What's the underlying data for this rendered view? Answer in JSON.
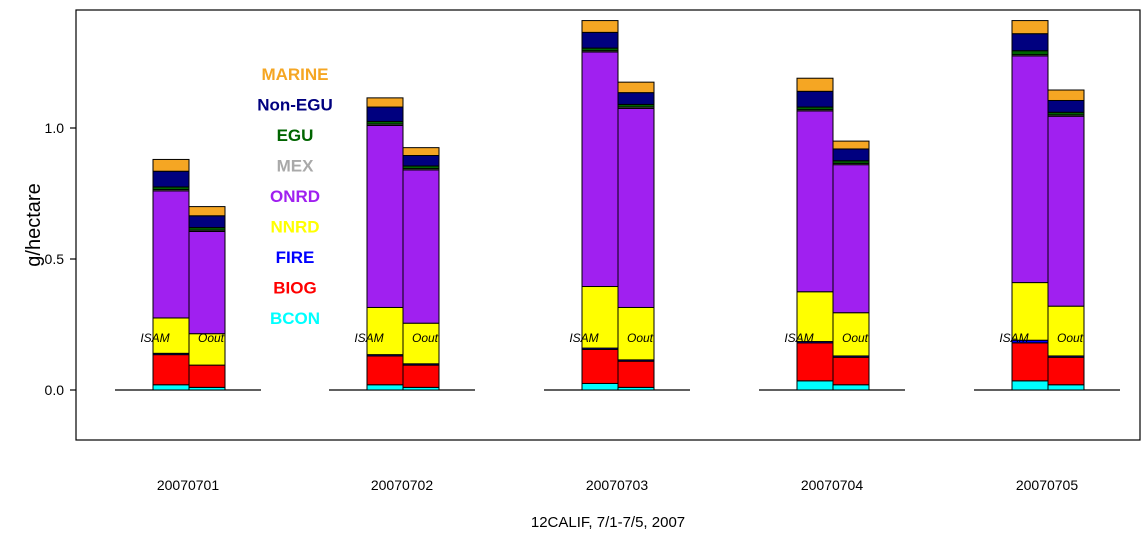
{
  "chart_data": {
    "type": "bar",
    "stacked": true,
    "xlabel": "12CALIF, 7/1-7/5, 2007",
    "ylabel": "g/hectare",
    "ylim": [
      -0.19,
      1.45
    ],
    "yticks": [
      "0.0",
      "0.5",
      "1.0"
    ],
    "ytick_values": [
      0.0,
      0.5,
      1.0
    ],
    "grid": false,
    "legend_position": "left, inside plot",
    "categories": [
      "20070701",
      "20070702",
      "20070703",
      "20070704",
      "20070705"
    ],
    "bar_labels": [
      "ISAM",
      "Oout"
    ],
    "legend": [
      {
        "name": "MARINE",
        "color": "#f5a623"
      },
      {
        "name": "Non-EGU",
        "color": "#00007f"
      },
      {
        "name": "EGU",
        "color": "#006400"
      },
      {
        "name": "MEX",
        "color": "#a9a9a9"
      },
      {
        "name": "ONRD",
        "color": "#a020f0"
      },
      {
        "name": "NNRD",
        "color": "#ffff00"
      },
      {
        "name": "FIRE",
        "color": "#0000ff"
      },
      {
        "name": "BIOG",
        "color": "#ff0000"
      },
      {
        "name": "BCON",
        "color": "#00ffff"
      }
    ],
    "stack_order": [
      "BCON",
      "BIOG",
      "FIRE",
      "NNRD",
      "ONRD",
      "MEX",
      "EGU",
      "Non-EGU",
      "MARINE"
    ],
    "bars": [
      {
        "category": "20070701",
        "label": "ISAM",
        "values": {
          "BCON": 0.02,
          "BIOG": 0.115,
          "FIRE": 0.005,
          "NNRD": 0.135,
          "ONRD": 0.485,
          "MEX": 0.005,
          "EGU": 0.01,
          "Non-EGU": 0.06,
          "MARINE": 0.045
        }
      },
      {
        "category": "20070701",
        "label": "Oout",
        "values": {
          "BCON": 0.01,
          "BIOG": 0.085,
          "FIRE": 0.0,
          "NNRD": 0.12,
          "ONRD": 0.39,
          "MEX": 0.005,
          "EGU": 0.01,
          "Non-EGU": 0.045,
          "MARINE": 0.035
        }
      },
      {
        "category": "20070702",
        "label": "ISAM",
        "values": {
          "BCON": 0.02,
          "BIOG": 0.11,
          "FIRE": 0.005,
          "NNRD": 0.18,
          "ONRD": 0.695,
          "MEX": 0.005,
          "EGU": 0.01,
          "Non-EGU": 0.055,
          "MARINE": 0.035
        }
      },
      {
        "category": "20070702",
        "label": "Oout",
        "values": {
          "BCON": 0.01,
          "BIOG": 0.085,
          "FIRE": 0.005,
          "NNRD": 0.155,
          "ONRD": 0.585,
          "MEX": 0.005,
          "EGU": 0.01,
          "Non-EGU": 0.04,
          "MARINE": 0.03
        }
      },
      {
        "category": "20070703",
        "label": "ISAM",
        "values": {
          "BCON": 0.025,
          "BIOG": 0.13,
          "FIRE": 0.005,
          "NNRD": 0.235,
          "ONRD": 0.895,
          "MEX": 0.005,
          "EGU": 0.01,
          "Non-EGU": 0.06,
          "MARINE": 0.045
        }
      },
      {
        "category": "20070703",
        "label": "Oout",
        "values": {
          "BCON": 0.01,
          "BIOG": 0.1,
          "FIRE": 0.005,
          "NNRD": 0.2,
          "ONRD": 0.76,
          "MEX": 0.005,
          "EGU": 0.01,
          "Non-EGU": 0.045,
          "MARINE": 0.04
        }
      },
      {
        "category": "20070704",
        "label": "ISAM",
        "values": {
          "BCON": 0.035,
          "BIOG": 0.145,
          "FIRE": 0.005,
          "NNRD": 0.19,
          "ONRD": 0.69,
          "MEX": 0.005,
          "EGU": 0.01,
          "Non-EGU": 0.06,
          "MARINE": 0.05
        }
      },
      {
        "category": "20070704",
        "label": "Oout",
        "values": {
          "BCON": 0.02,
          "BIOG": 0.105,
          "FIRE": 0.005,
          "NNRD": 0.165,
          "ONRD": 0.565,
          "MEX": 0.005,
          "EGU": 0.01,
          "Non-EGU": 0.045,
          "MARINE": 0.03
        }
      },
      {
        "category": "20070705",
        "label": "ISAM",
        "values": {
          "BCON": 0.035,
          "BIOG": 0.145,
          "FIRE": 0.01,
          "NNRD": 0.22,
          "ONRD": 0.865,
          "MEX": 0.005,
          "EGU": 0.015,
          "Non-EGU": 0.065,
          "MARINE": 0.05
        }
      },
      {
        "category": "20070705",
        "label": "Oout",
        "values": {
          "BCON": 0.02,
          "BIOG": 0.105,
          "FIRE": 0.005,
          "NNRD": 0.19,
          "ONRD": 0.725,
          "MEX": 0.005,
          "EGU": 0.01,
          "Non-EGU": 0.045,
          "MARINE": 0.04
        }
      }
    ]
  }
}
